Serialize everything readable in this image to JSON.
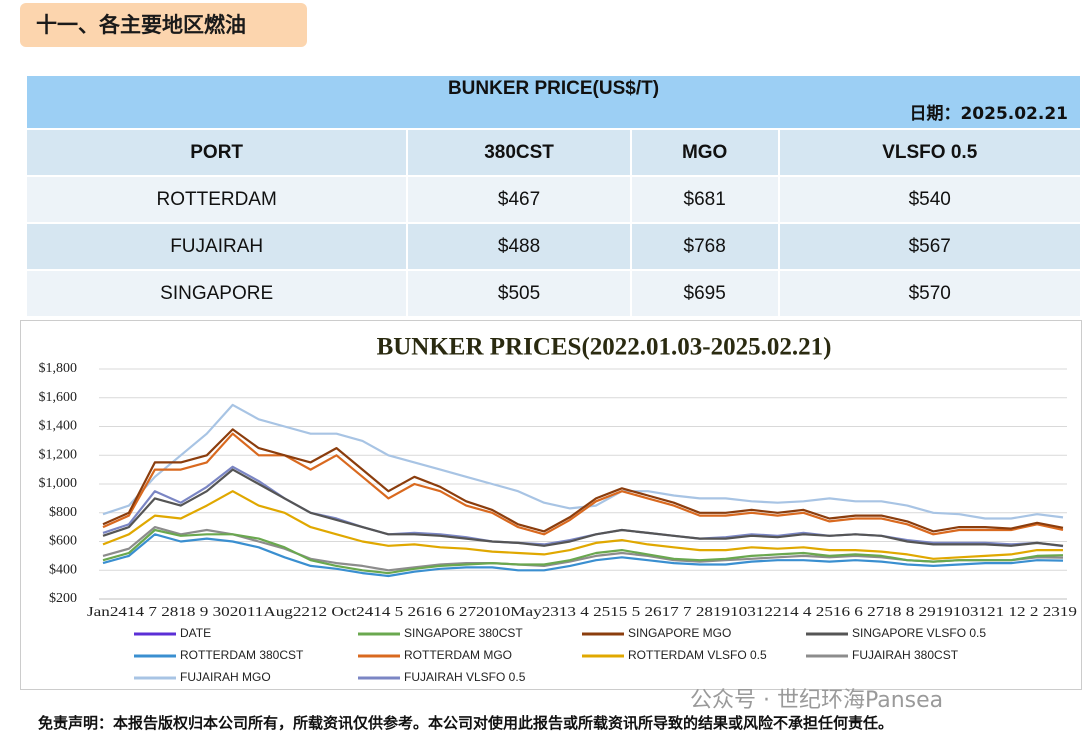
{
  "header": {
    "title": "十一、各主要地区燃油"
  },
  "table": {
    "title": "BUNKER PRICE(US$/T)",
    "date": "日期：2025.02.21",
    "columns": [
      "PORT",
      "380CST",
      "MGO",
      "VLSFO 0.5"
    ],
    "rows": [
      [
        "ROTTERDAM",
        "$467",
        "$681",
        "$540"
      ],
      [
        "FUJAIRAH",
        "$488",
        "$768",
        "$567"
      ],
      [
        "SINGAPORE",
        "$505",
        "$695",
        "$570"
      ]
    ]
  },
  "chart_data": {
    "type": "line",
    "title": "BUNKER PRICES(2022.01.03-2025.02.21)",
    "x_axis_text": "Jan2414 7 2818 9 302011Aug2212 Oct2414 5 2616 6 272010May2313 4 2515 5 2617 7 281910312214 4 2516 6 2718 8 2919103121 12 2 2319",
    "categories": [
      null,
      null,
      null,
      null,
      null,
      null,
      null,
      null,
      null,
      null,
      null,
      null,
      null,
      null,
      null,
      null,
      null,
      null,
      null,
      null,
      null,
      null,
      null,
      null,
      null,
      null,
      null,
      null,
      null,
      null,
      null,
      null,
      null,
      null,
      null,
      null,
      null,
      null
    ],
    "ylim": [
      200,
      1800
    ],
    "yticks": [
      {
        "value": 200,
        "label": "$200"
      },
      {
        "value": 400,
        "label": "$400"
      },
      {
        "value": 600,
        "label": "$600"
      },
      {
        "value": 800,
        "label": "$800"
      },
      {
        "value": 1000,
        "label": "$1,000"
      },
      {
        "value": 1200,
        "label": "$1,200"
      },
      {
        "value": 1400,
        "label": "$1,400"
      },
      {
        "value": 1600,
        "label": "$1,600"
      },
      {
        "value": 1800,
        "label": "$1,800"
      }
    ],
    "grid": true,
    "series": [
      {
        "name": "DATE",
        "color": "#5b2fd6",
        "values": [
          null,
          null,
          null,
          null,
          null,
          null,
          null,
          null,
          null,
          null,
          null,
          null,
          null,
          null,
          null,
          null,
          null,
          null,
          null,
          null,
          null,
          null,
          null,
          null,
          null,
          null,
          null,
          null,
          null,
          null,
          null,
          null,
          null,
          null,
          null,
          null,
          null,
          null
        ]
      },
      {
        "name": "SINGAPORE 380CST",
        "color": "#6aa84f",
        "values": [
          470,
          520,
          680,
          640,
          650,
          650,
          620,
          560,
          470,
          430,
          400,
          380,
          410,
          430,
          440,
          450,
          440,
          440,
          470,
          520,
          540,
          510,
          480,
          470,
          480,
          500,
          510,
          520,
          500,
          510,
          500,
          470,
          460,
          470,
          470,
          470,
          500,
          505
        ]
      },
      {
        "name": "SINGAPORE MGO",
        "color": "#8b3d0d",
        "values": [
          720,
          800,
          1150,
          1150,
          1200,
          1380,
          1250,
          1200,
          1150,
          1250,
          1100,
          950,
          1050,
          980,
          880,
          820,
          720,
          670,
          770,
          900,
          970,
          920,
          870,
          800,
          800,
          820,
          800,
          820,
          760,
          780,
          780,
          740,
          670,
          700,
          700,
          690,
          730,
          695
        ]
      },
      {
        "name": "SINGAPORE VLSFO 0.5",
        "color": "#555555",
        "values": [
          640,
          700,
          900,
          850,
          950,
          1100,
          1000,
          900,
          800,
          750,
          700,
          650,
          650,
          640,
          620,
          600,
          590,
          570,
          600,
          650,
          680,
          660,
          640,
          620,
          620,
          640,
          630,
          650,
          640,
          650,
          640,
          600,
          580,
          580,
          580,
          570,
          590,
          570
        ]
      },
      {
        "name": "ROTTERDAM 380CST",
        "color": "#3a8fd0",
        "values": [
          450,
          500,
          650,
          600,
          620,
          600,
          560,
          490,
          430,
          410,
          380,
          360,
          390,
          410,
          420,
          420,
          400,
          400,
          430,
          470,
          490,
          470,
          450,
          440,
          440,
          460,
          470,
          470,
          460,
          470,
          460,
          440,
          430,
          440,
          450,
          450,
          470,
          467
        ]
      },
      {
        "name": "ROTTERDAM MGO",
        "color": "#d9691f",
        "values": [
          700,
          780,
          1100,
          1100,
          1150,
          1350,
          1200,
          1200,
          1100,
          1200,
          1050,
          900,
          1000,
          950,
          850,
          800,
          700,
          650,
          750,
          880,
          950,
          900,
          850,
          780,
          780,
          800,
          780,
          800,
          740,
          760,
          760,
          720,
          650,
          680,
          680,
          680,
          720,
          681
        ]
      },
      {
        "name": "ROTTERDAM VLSFO 0.5",
        "color": "#e0a800",
        "values": [
          580,
          650,
          780,
          760,
          850,
          950,
          850,
          800,
          700,
          650,
          600,
          570,
          580,
          560,
          550,
          530,
          520,
          510,
          540,
          590,
          610,
          580,
          560,
          540,
          540,
          560,
          550,
          560,
          540,
          540,
          530,
          510,
          480,
          490,
          500,
          510,
          540,
          540
        ]
      },
      {
        "name": "FUJAIRAH  380CST",
        "color": "#8c8c8c",
        "values": [
          500,
          550,
          700,
          650,
          680,
          650,
          600,
          550,
          480,
          450,
          430,
          400,
          420,
          440,
          450,
          450,
          440,
          430,
          460,
          500,
          520,
          500,
          470,
          460,
          470,
          480,
          490,
          500,
          490,
          500,
          490,
          470,
          460,
          470,
          470,
          470,
          490,
          488
        ]
      },
      {
        "name": "FUJAIRAH MGO",
        "color": "#a8c4e4",
        "values": [
          790,
          850,
          1050,
          1200,
          1350,
          1550,
          1450,
          1400,
          1350,
          1350,
          1300,
          1200,
          1150,
          1100,
          1050,
          1000,
          950,
          870,
          830,
          850,
          950,
          950,
          920,
          900,
          900,
          880,
          870,
          880,
          900,
          880,
          880,
          850,
          800,
          790,
          760,
          760,
          790,
          768
        ]
      },
      {
        "name": "FUJAIRAH VLSFO 0.5",
        "color": "#7b86c4",
        "values": [
          660,
          720,
          950,
          870,
          980,
          1120,
          1020,
          900,
          800,
          760,
          700,
          650,
          660,
          650,
          630,
          600,
          590,
          580,
          610,
          650,
          680,
          660,
          640,
          620,
          630,
          650,
          640,
          660,
          640,
          650,
          640,
          610,
          590,
          590,
          590,
          580,
          590,
          567
        ]
      }
    ]
  },
  "watermark": "公众号 · 世纪环海Pansea",
  "footer": {
    "disclaimer": "免责声明：本报告版权归本公司所有，所载资讯仅供参考。本公司对使用此报告或所载资讯所导致的结果或风险不承担任何责任。"
  }
}
